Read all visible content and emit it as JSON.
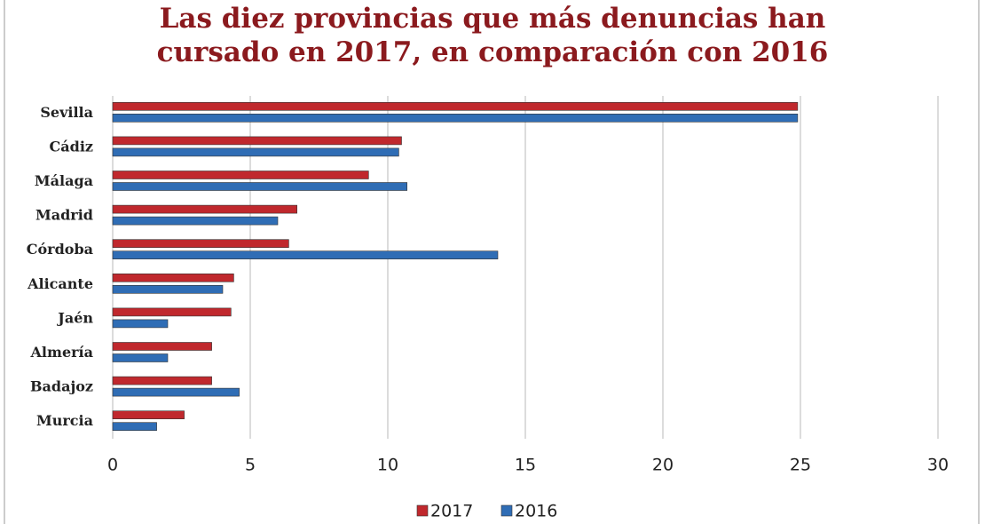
{
  "chart_data": {
    "type": "bar",
    "orientation": "horizontal",
    "title": "Las diez provincias que más denuncias han cursado en 2017, en comparación con 2016",
    "categories": [
      "Sevilla",
      "Cádiz",
      "Málaga",
      "Madrid",
      "Córdoba",
      "Alicante",
      "Jaén",
      "Almería",
      "Badajoz",
      "Murcia"
    ],
    "series": [
      {
        "name": "2017",
        "color": "#c0282d",
        "values": [
          24.9,
          10.5,
          9.3,
          6.7,
          6.4,
          4.4,
          4.3,
          3.6,
          3.6,
          2.6
        ]
      },
      {
        "name": "2016",
        "color": "#2f6db5",
        "values": [
          24.9,
          10.4,
          10.7,
          6.0,
          14.0,
          4.0,
          2.0,
          2.0,
          4.6,
          1.6
        ]
      }
    ],
    "xlim": [
      0,
      30
    ],
    "xticks": [
      0,
      5,
      10,
      15,
      20,
      25,
      30
    ],
    "grid": true,
    "legend": "bottom"
  }
}
